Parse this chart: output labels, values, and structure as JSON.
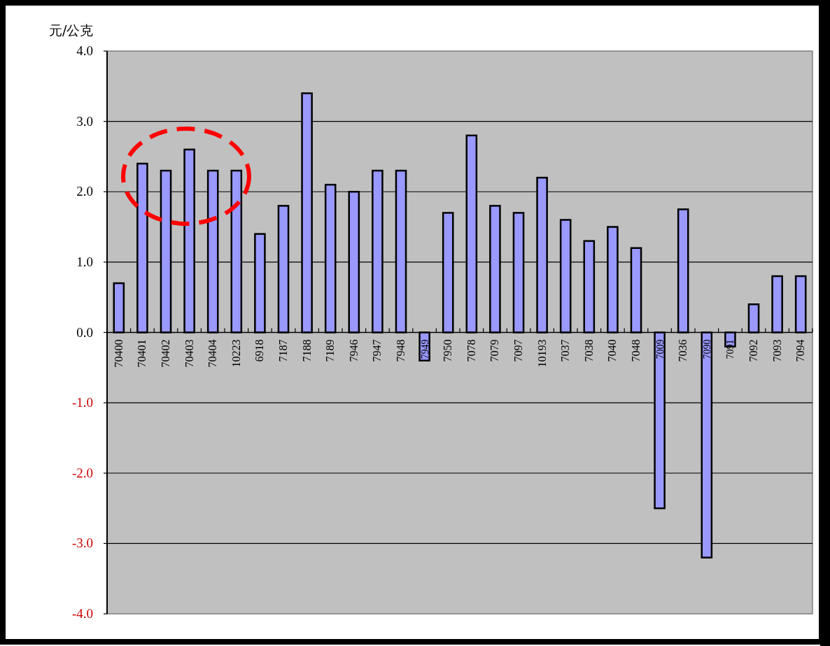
{
  "chart_data": {
    "type": "bar",
    "ylabel": "元/公克",
    "categories": [
      "70400",
      "70401",
      "70402",
      "70403",
      "70404",
      "10223",
      "6918",
      "7187",
      "7188",
      "7189",
      "7946",
      "7947",
      "7948",
      "7949",
      "7950",
      "7078",
      "7079",
      "7097",
      "10193",
      "7037",
      "7038",
      "7040",
      "7048",
      "7009",
      "7036",
      "7090",
      "7091",
      "7092",
      "7093",
      "7094"
    ],
    "values": [
      0.7,
      2.4,
      2.3,
      2.6,
      2.3,
      2.3,
      1.4,
      1.8,
      3.4,
      2.1,
      2.0,
      2.3,
      2.3,
      -0.4,
      1.7,
      2.8,
      1.8,
      1.7,
      2.2,
      1.6,
      1.3,
      1.5,
      1.2,
      -2.5,
      1.75,
      -3.2,
      -0.2,
      0.4,
      0.8,
      0.8
    ],
    "color": "#9999ff",
    "ylim": [
      -4,
      4
    ],
    "yticks": [
      {
        "value": 4,
        "label": "4.0"
      },
      {
        "value": 3,
        "label": "3.0"
      },
      {
        "value": 2,
        "label": "2.0"
      },
      {
        "value": 1,
        "label": "1.0"
      },
      {
        "value": 0,
        "label": "0.0"
      },
      {
        "value": -1,
        "label": "-1.0"
      },
      {
        "value": -2,
        "label": "-2.0"
      },
      {
        "value": -3,
        "label": "-3.0"
      },
      {
        "value": -4,
        "label": "-4.0"
      }
    ],
    "grid": "y"
  }
}
